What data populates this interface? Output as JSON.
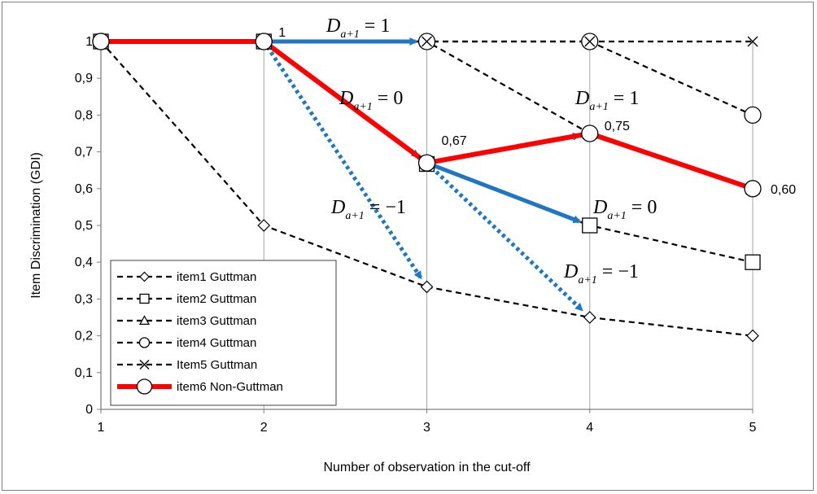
{
  "chart_data": {
    "type": "line",
    "xlabel": "Number of observation in the cut-off",
    "ylabel": "Item Discrimination (GDI)",
    "x": [
      1,
      2,
      3,
      4,
      5
    ],
    "xlim": [
      1,
      5
    ],
    "ylim": [
      0,
      1
    ],
    "xticks": [
      "1",
      "2",
      "3",
      "4",
      "5"
    ],
    "yticks": [
      "0",
      "0,1",
      "0,2",
      "0,3",
      "0,4",
      "0,5",
      "0,6",
      "0,7",
      "0,8",
      "0,9",
      "1"
    ],
    "grid": "vertical",
    "legend_position": "bottom-left",
    "series": [
      {
        "name": "item1 Guttman",
        "values": [
          1,
          0.5,
          0.333,
          0.25,
          0.2
        ],
        "marker": "diamond",
        "style": "dashed",
        "color": "#000000"
      },
      {
        "name": "item2 Guttman",
        "values": [
          1,
          1,
          0.667,
          0.5,
          0.4
        ],
        "marker": "square",
        "style": "dashed",
        "color": "#000000"
      },
      {
        "name": "item3 Guttman",
        "values": [
          1,
          1,
          1,
          0.75,
          0.6
        ],
        "marker": "triangle",
        "style": "dashed",
        "color": "#000000"
      },
      {
        "name": "item4 Guttman",
        "values": [
          1,
          1,
          1,
          1,
          0.8
        ],
        "marker": "circle",
        "style": "dashed",
        "color": "#000000"
      },
      {
        "name": "Item5 Guttman",
        "values": [
          1,
          1,
          1,
          1,
          1
        ],
        "marker": "x",
        "style": "dashed",
        "color": "#000000"
      },
      {
        "name": "item6 Non-Guttman",
        "values": [
          1,
          1,
          0.67,
          0.75,
          0.6
        ],
        "marker": "circle",
        "style": "solid-thick",
        "color": "#ff0000"
      }
    ],
    "data_labels": [
      {
        "text": "1",
        "x": 2,
        "y": 1
      },
      {
        "text": "0,67",
        "x": 3,
        "y": 0.67
      },
      {
        "text": "0,75",
        "x": 4,
        "y": 0.75
      },
      {
        "text": "0,60",
        "x": 5,
        "y": 0.6
      }
    ],
    "arrows": [
      {
        "from": [
          2,
          1
        ],
        "to": [
          3,
          1
        ],
        "style": "solid",
        "label": "= 1"
      },
      {
        "from": [
          2,
          1
        ],
        "to": [
          3,
          0.67
        ],
        "style": "solid",
        "label": "= 0"
      },
      {
        "from": [
          2,
          1
        ],
        "to": [
          3,
          0.333
        ],
        "style": "dotted",
        "label": "= −1"
      },
      {
        "from": [
          3,
          0.67
        ],
        "to": [
          4,
          0.75
        ],
        "style": "solid",
        "label": "= 1"
      },
      {
        "from": [
          3,
          0.67
        ],
        "to": [
          4,
          0.5
        ],
        "style": "solid",
        "label": "= 0"
      },
      {
        "from": [
          3,
          0.67
        ],
        "to": [
          4,
          0.25
        ],
        "style": "dotted",
        "label": "= −1"
      }
    ],
    "annotation_symbol": "D",
    "annotation_subscript": "a+1",
    "arrow_color": "#1f77c4"
  }
}
